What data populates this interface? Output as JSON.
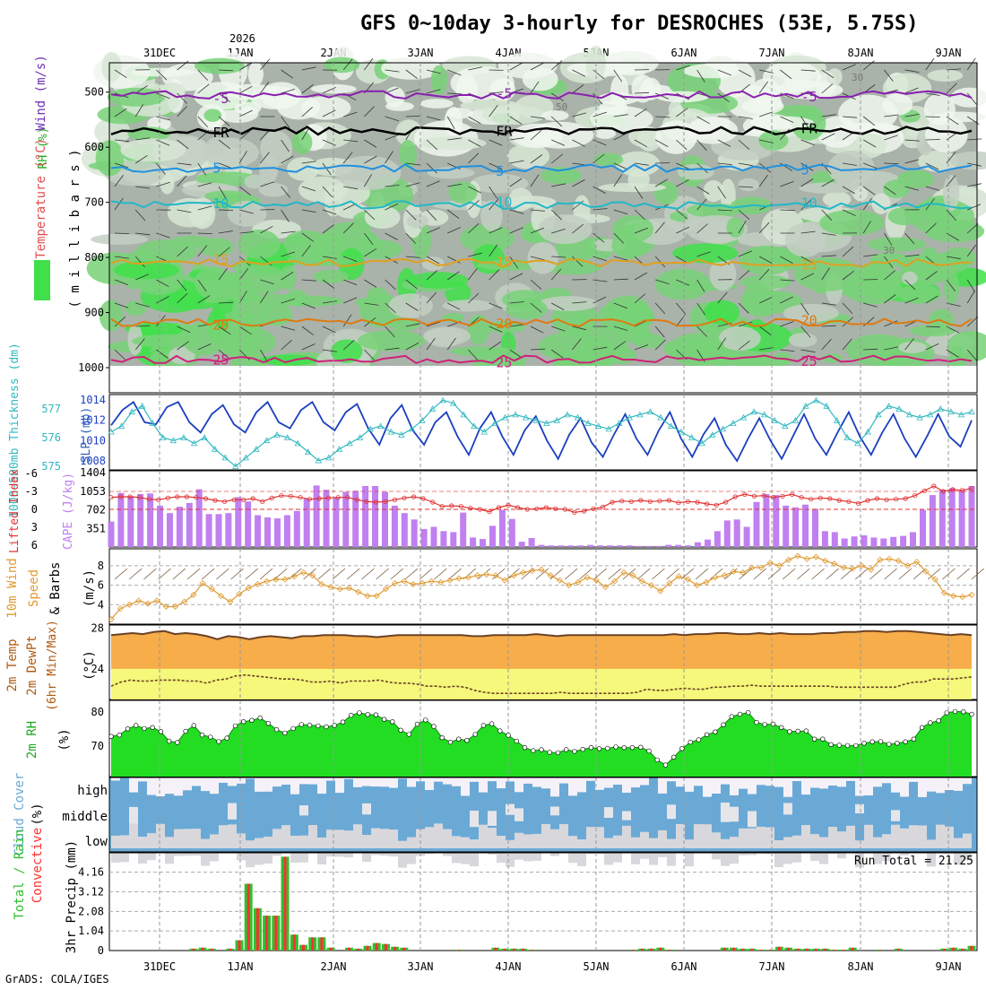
{
  "title": "GFS 0~10day 3-hourly for DESROCHES (53E, 5.75S)",
  "year_label": "2026",
  "credit": "GrADS: COLA/IGES",
  "dates": [
    "31DEC",
    "1JAN",
    "2JAN",
    "3JAN",
    "4JAN",
    "5JAN",
    "6JAN",
    "7JAN",
    "8JAN",
    "9JAN"
  ],
  "colors": {
    "rh": "#00cc00",
    "temp": "#e08a1e",
    "wind": "#2a6fd1",
    "cape": "#c080f0",
    "li": "#e03030",
    "slp": "#1a3fbf",
    "thk": "#30b8c0",
    "spd": "#e09a30",
    "cloud": "#6aa9d6",
    "precip": "#ff3030",
    "rain": "#30c030"
  },
  "chart_data": [
    {
      "type": "heatmap",
      "panel": "cross-section",
      "y_axis": {
        "label_parts": [
          "RH (%)",
          "Temperature (°C)",
          "Wind (m/s)"
        ],
        "units_label": "( m i l l i b a r s )",
        "ticks": [
          500,
          600,
          700,
          800,
          900,
          1000
        ],
        "ylim": [
          450,
          1000
        ]
      },
      "isotherms": [
        {
          "label": "-5",
          "level_mb": 505,
          "color": "#8a1fb0"
        },
        {
          "label": "FR",
          "level_mb": 570,
          "color": "#000000"
        },
        {
          "label": "5",
          "level_mb": 638,
          "color": "#1e90e0"
        },
        {
          "label": "10",
          "level_mb": 705,
          "color": "#20b8c8"
        },
        {
          "label": "15",
          "level_mb": 810,
          "color": "#e0a020"
        },
        {
          "label": "20",
          "level_mb": 918,
          "color": "#e07a10"
        },
        {
          "label": "25",
          "level_mb": 985,
          "color": "#d0207a"
        }
      ],
      "rh_labels": [
        "30",
        "50"
      ]
    },
    {
      "type": "line",
      "panel": "slp-thickness",
      "ylabel_left": "1000~500mb Thickness (dm)",
      "ylabel_right": "SLP (mb)",
      "left_ticks": [
        575,
        576,
        577
      ],
      "right_ticks": [
        1008,
        1010,
        1012,
        1014
      ],
      "series": [
        {
          "name": "SLP (mb)",
          "values": [
            1011.5,
            1013.0,
            1013.8,
            1011.8,
            1011.6,
            1013.3,
            1013.8,
            1011.8,
            1010.8,
            1012.6,
            1013.5,
            1011.6,
            1010.8,
            1012.8,
            1013.8,
            1011.8,
            1011.2,
            1013.0,
            1013.8,
            1011.8,
            1011.0,
            1012.8,
            1013.6,
            1011.2,
            1009.6,
            1012.2,
            1013.5,
            1011.0,
            1009.6,
            1011.8,
            1012.8,
            1010.4,
            1008.6,
            1011.2,
            1012.8,
            1010.4,
            1008.6,
            1011.0,
            1012.4,
            1010.0,
            1008.2,
            1010.6,
            1012.2,
            1009.8,
            1008.4,
            1010.6,
            1012.6,
            1010.2,
            1008.6,
            1011.0,
            1012.8,
            1010.2,
            1008.4,
            1010.6,
            1012.2,
            1009.6,
            1008.0,
            1010.2,
            1012.2,
            1010.0,
            1008.2,
            1010.4,
            1012.6,
            1010.2,
            1008.6,
            1010.8,
            1012.8,
            1010.4,
            1008.6,
            1010.8,
            1012.6,
            1010.2,
            1008.4,
            1010.4,
            1012.6,
            1010.4,
            1009.4,
            1012.0
          ]
        },
        {
          "name": "Thickness (dm)",
          "values": [
            576.2,
            576.4,
            576.9,
            577.1,
            576.5,
            576.0,
            575.9,
            576.0,
            575.8,
            576.0,
            575.6,
            575.3,
            575.0,
            575.3,
            575.6,
            575.9,
            576.1,
            576.0,
            575.8,
            575.5,
            575.2,
            575.3,
            575.6,
            575.8,
            576.0,
            576.3,
            576.4,
            576.2,
            576.1,
            576.3,
            576.6,
            577.0,
            577.3,
            577.2,
            576.8,
            576.4,
            576.2,
            576.5,
            576.7,
            576.8,
            576.7,
            576.6,
            576.5,
            576.6,
            576.8,
            576.7,
            576.5,
            576.4,
            576.3,
            576.5,
            576.7,
            576.8,
            576.9,
            576.7,
            576.4,
            576.2,
            576.0,
            575.8,
            576.1,
            576.3,
            576.5,
            576.7,
            576.9,
            576.8,
            576.6,
            576.4,
            576.6,
            577.1,
            577.3,
            577.1,
            576.6,
            576.0,
            575.8,
            576.2,
            576.8,
            577.1,
            577.0,
            576.8,
            576.7,
            576.8,
            577.0,
            576.9,
            576.8,
            576.9
          ]
        }
      ]
    },
    {
      "type": "bar",
      "panel": "cape-li",
      "ylabel_left": "Lifted Index",
      "ylabel_right": "CAPE (J/kg)",
      "li_ticks": [
        -6,
        -3,
        0,
        3,
        6
      ],
      "cape_ticks": [
        351,
        702,
        1053,
        1404
      ],
      "series": [
        {
          "name": "CAPE (J/kg)",
          "values": [
            480,
            1020,
            960,
            1000,
            1010,
            780,
            640,
            760,
            830,
            1090,
            620,
            620,
            640,
            940,
            860,
            600,
            560,
            540,
            600,
            680,
            910,
            1160,
            1080,
            930,
            1040,
            1060,
            1150,
            1150,
            1040,
            780,
            640,
            520,
            340,
            380,
            300,
            280,
            650,
            180,
            150,
            400,
            700,
            530,
            100,
            170,
            40,
            30,
            30,
            30,
            30,
            40,
            30,
            30,
            30,
            30,
            20,
            20,
            20,
            40,
            40,
            30,
            90,
            140,
            300,
            500,
            520,
            380,
            850,
            1000,
            980,
            780,
            750,
            800,
            720,
            300,
            280,
            160,
            200,
            220,
            180,
            160,
            190,
            210,
            280,
            700,
            980,
            1080,
            1110,
            1060,
            1150
          ]
        },
        {
          "name": "Lifted Index",
          "values": [
            -2.0,
            -2.1,
            -2.1,
            -2.0,
            -1.7,
            -1.6,
            -1.9,
            -2.1,
            -2.1,
            -2.0,
            -1.8,
            -1.5,
            -1.3,
            -1.6,
            -1.6,
            -1.8,
            -1.3,
            -1.9,
            -2.3,
            -2.2,
            -2.0,
            -1.7,
            -1.8,
            -1.9,
            -2.0,
            -2.0,
            -1.6,
            -1.3,
            -1.2,
            -1.3,
            -1.6,
            -1.9,
            -2.1,
            -1.8,
            -1.2,
            -0.5,
            -0.6,
            -0.5,
            -0.2,
            0.0,
            0.4,
            -0.3,
            -0.7,
            -0.3,
            0.0,
            -0.1,
            -0.3,
            -0.1,
            0.0,
            0.5,
            0.3,
            -0.1,
            -0.4,
            -1.2,
            -1.4,
            -1.3,
            -1.5,
            -1.3,
            -1.4,
            -1.5,
            -1.1,
            -1.3,
            -1.2,
            -0.9,
            -0.7,
            -1.2,
            -2.1,
            -2.5,
            -2.2,
            -2.3,
            -2.0,
            -2.2,
            -2.5,
            -2.0,
            -1.7,
            -1.9,
            -1.8,
            -1.5,
            -1.3,
            -1.0,
            -1.5,
            -1.8,
            -1.6,
            -1.7,
            -1.8,
            -2.3,
            -3.1,
            -3.9,
            -3.0,
            -3.3,
            -3.2,
            -3.5
          ]
        }
      ]
    },
    {
      "type": "line",
      "panel": "wind",
      "ylabel": "10m Wind Speed & Barbs (m/s)",
      "yticks": [
        4,
        6,
        8
      ],
      "ylim": [
        2,
        9
      ],
      "series": [
        {
          "name": "10m Wind Speed (m/s)",
          "values": [
            2.5,
            3.6,
            4.0,
            4.4,
            4.1,
            4.4,
            3.8,
            3.8,
            4.3,
            5.0,
            6.2,
            5.6,
            4.9,
            4.3,
            5.1,
            5.7,
            6.1,
            6.4,
            6.6,
            6.6,
            6.9,
            7.3,
            7.0,
            6.1,
            5.8,
            5.6,
            5.7,
            5.3,
            4.9,
            4.9,
            5.6,
            6.2,
            6.4,
            6.1,
            6.2,
            6.4,
            6.3,
            6.5,
            6.7,
            6.8,
            7.0,
            7.1,
            7.0,
            6.5,
            7.0,
            7.3,
            7.5,
            7.6,
            7.0,
            6.5,
            6.0,
            6.3,
            6.8,
            6.5,
            5.8,
            6.4,
            7.3,
            7.0,
            6.4,
            6.0,
            5.4,
            6.2,
            6.9,
            6.6,
            6.0,
            6.3,
            6.8,
            7.0,
            7.4,
            7.3,
            7.8,
            7.8,
            8.3,
            8.0,
            8.6,
            9.0,
            8.7,
            8.9,
            8.5,
            8.2,
            7.8,
            7.7,
            8.0,
            7.6,
            8.6,
            8.7,
            8.5,
            8.0,
            8.4,
            7.4,
            6.6,
            5.2,
            4.9,
            4.8,
            5.0
          ]
        }
      ]
    },
    {
      "type": "area",
      "panel": "temp-dewpoint",
      "ylabel": "2m Temp 2m DewPt (6hr Min/Max) (°C)",
      "yticks": [
        24,
        28
      ],
      "ylim": [
        21,
        28.2
      ],
      "series": [
        {
          "name": "2m Temp (°C)",
          "values": [
            27.3,
            27.4,
            27.5,
            27.4,
            27.6,
            27.7,
            27.4,
            27.5,
            27.4,
            27.2,
            26.9,
            27.2,
            27.1,
            26.9,
            27.1,
            27.2,
            27.1,
            27.0,
            27.2,
            27.2,
            27.3,
            27.3,
            27.3,
            27.2,
            27.2,
            27.1,
            27.2,
            27.3,
            27.3,
            27.3,
            27.3,
            27.3,
            27.3,
            27.3,
            27.2,
            27.2,
            27.3,
            27.3,
            27.3,
            27.3,
            27.4,
            27.3,
            27.2,
            27.3,
            27.3,
            27.3,
            27.3,
            27.3,
            27.3,
            27.3,
            27.3,
            27.3,
            27.3,
            27.4,
            27.3,
            27.4,
            27.4,
            27.5,
            27.5,
            27.4,
            27.4,
            27.5,
            27.4,
            27.5,
            27.4,
            27.4,
            27.4,
            27.5,
            27.5,
            27.6,
            27.6,
            27.7,
            27.7,
            27.6,
            27.7,
            27.7,
            27.6,
            27.5,
            27.4,
            27.3,
            27.4,
            27.3
          ]
        },
        {
          "name": "2m DewPt (°C)",
          "values": [
            22.3,
            22.7,
            22.9,
            22.8,
            22.8,
            22.9,
            22.9,
            22.9,
            22.8,
            22.8,
            22.6,
            22.9,
            23.0,
            23.3,
            23.4,
            23.3,
            23.2,
            23.1,
            23.0,
            23.0,
            22.9,
            22.7,
            22.7,
            22.8,
            22.6,
            22.8,
            22.8,
            22.8,
            22.9,
            22.7,
            22.6,
            22.6,
            22.5,
            22.3,
            22.3,
            22.2,
            22.3,
            22.2,
            21.9,
            21.7,
            21.6,
            21.6,
            21.6,
            21.6,
            21.6,
            21.6,
            21.6,
            21.7,
            21.6,
            21.6,
            21.6,
            21.6,
            21.6,
            21.6,
            21.6,
            21.7,
            22.0,
            21.9,
            21.9,
            22.0,
            22.1,
            22.0,
            22.0,
            22.2,
            22.2,
            22.3,
            22.3,
            22.4,
            22.3,
            22.3,
            22.3,
            22.3,
            22.3,
            22.3,
            22.3,
            22.3,
            22.2,
            22.2,
            22.2,
            22.2,
            22.2,
            22.2,
            22.2,
            22.5,
            22.7,
            22.7,
            23.0,
            23.0,
            23.0,
            23.1,
            23.2
          ]
        }
      ]
    },
    {
      "type": "area",
      "panel": "rh",
      "ylabel": "2m RH (%)",
      "yticks": [
        70,
        80
      ],
      "ylim": [
        61,
        81
      ],
      "series": [
        {
          "name": "2m RH (%)",
          "values": [
            72.8,
            73.2,
            75.0,
            76.0,
            75.1,
            75.4,
            74.2,
            71.4,
            71.0,
            74.3,
            76.0,
            73.2,
            72.6,
            71.3,
            72.3,
            75.9,
            77.1,
            77.5,
            78.2,
            76.6,
            74.8,
            73.8,
            75.1,
            76.3,
            76.1,
            75.9,
            75.6,
            76.0,
            77.0,
            79.0,
            79.7,
            79.2,
            79.1,
            77.8,
            77.1,
            74.6,
            73.4,
            76.4,
            77.6,
            75.7,
            72.4,
            71.1,
            72.0,
            71.6,
            73.4,
            76.0,
            76.5,
            74.4,
            73.1,
            71.4,
            69.5,
            68.6,
            68.9,
            68.1,
            68.0,
            68.9,
            68.4,
            69.0,
            69.5,
            69.2,
            69.3,
            69.7,
            69.5,
            69.5,
            69.6,
            68.5,
            65.9,
            64.4,
            66.7,
            69.2,
            71.1,
            71.8,
            73.3,
            74.1,
            76.2,
            78.6,
            79.3,
            79.8,
            76.9,
            76.3,
            76.4,
            75.4,
            74.2,
            74.3,
            74.4,
            72.0,
            72.0,
            70.4,
            70.2,
            70.1,
            70.1,
            70.8,
            71.2,
            71.3,
            70.5,
            70.8,
            71.2,
            72.0,
            75.4,
            76.8,
            77.4,
            79.7,
            80.1,
            80.0,
            79.3
          ]
        }
      ]
    },
    {
      "type": "heatmap",
      "panel": "cloud-cover",
      "ylabel": "Cloud Cover (%)",
      "rows": [
        "high",
        "middle",
        "low"
      ]
    },
    {
      "type": "bar",
      "panel": "precip",
      "ylabel": "3hr Precip (mm)",
      "series_labels": [
        "Total / Rain",
        "Convective"
      ],
      "yticks": [
        0,
        1.04,
        2.08,
        3.12,
        4.16
      ],
      "ylim": [
        0,
        5
      ],
      "run_total_label": "Run Total = 21.25",
      "series": [
        {
          "name": "3hr Precip (mm)",
          "values": [
            0,
            0,
            0,
            0,
            0,
            0,
            0,
            0,
            0,
            0.1,
            0.15,
            0.1,
            0,
            0.1,
            0.55,
            3.55,
            2.25,
            1.85,
            1.85,
            4.98,
            0.85,
            0.3,
            0.7,
            0.7,
            0.15,
            0,
            0.15,
            0.1,
            0.25,
            0.4,
            0.35,
            0.2,
            0.15,
            0,
            0,
            0,
            0,
            0,
            0.05,
            0,
            0,
            0,
            0.15,
            0.1,
            0.1,
            0.1,
            0.05,
            0,
            0,
            0,
            0,
            0,
            0,
            0,
            0,
            0,
            0,
            0.05,
            0.1,
            0.1,
            0.15,
            0.05,
            0,
            0,
            0,
            0,
            0,
            0.15,
            0.15,
            0.1,
            0.1,
            0.05,
            0.05,
            0.2,
            0.15,
            0.1,
            0.1,
            0.1,
            0.1,
            0.05,
            0.05,
            0.15,
            0,
            0,
            0.05,
            0,
            0.1,
            0,
            0,
            0,
            0,
            0.1,
            0.15,
            0.1,
            0.25
          ]
        }
      ]
    }
  ]
}
